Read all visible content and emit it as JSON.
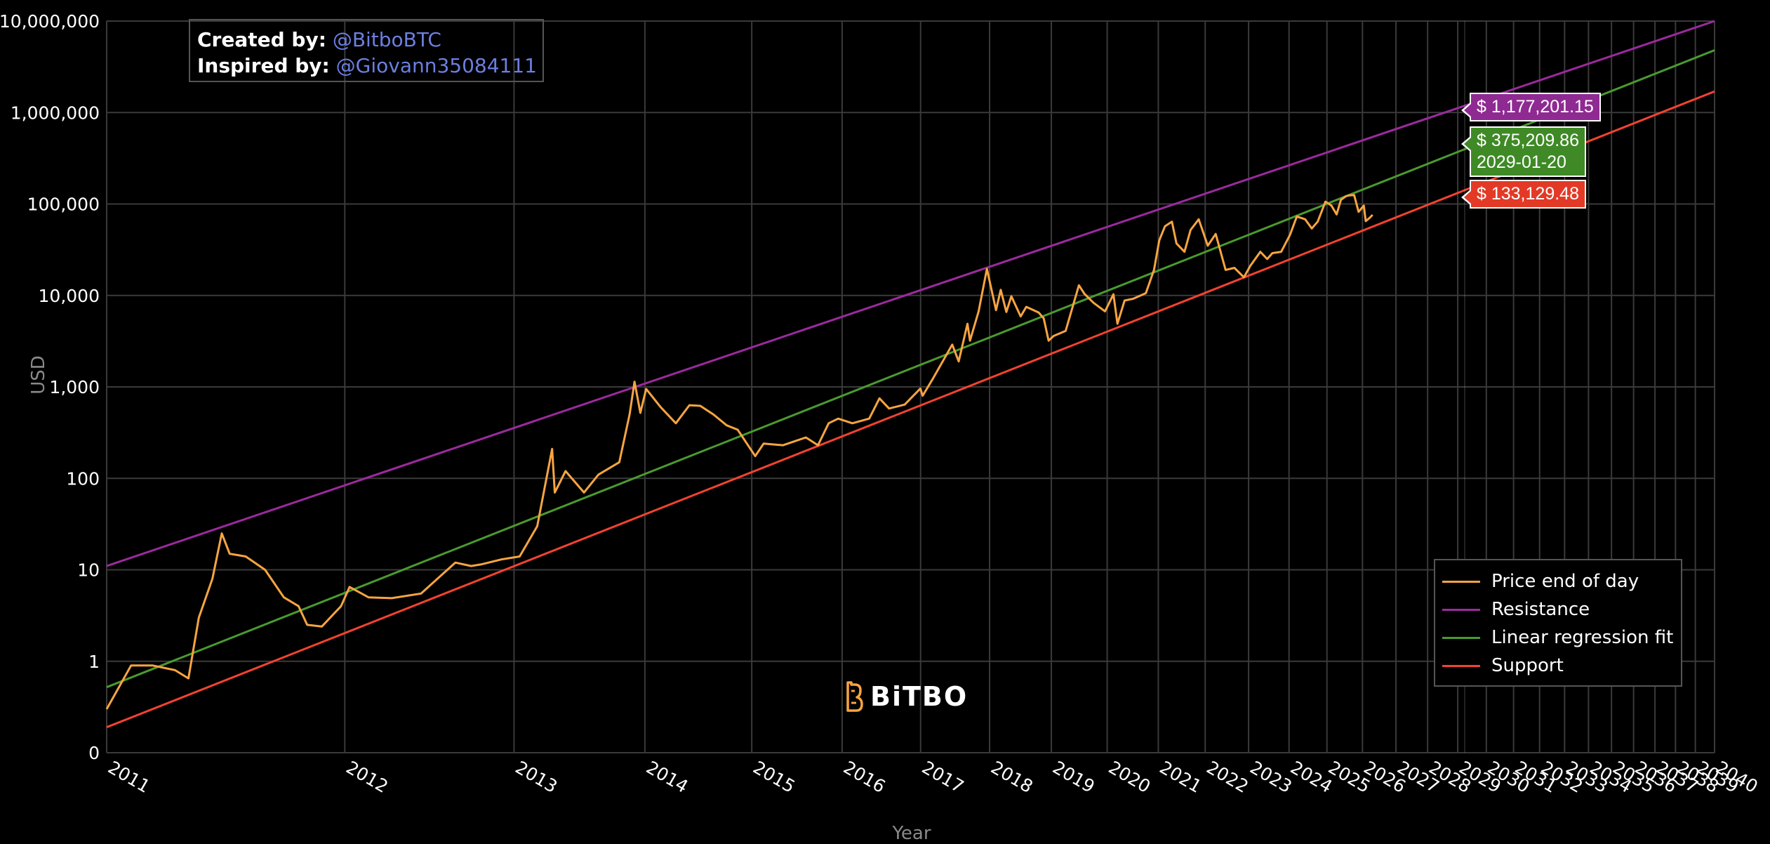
{
  "credits": {
    "created_label": "Created by:",
    "created_handle": "@BitboBTC",
    "inspired_label": "Inspired by:",
    "inspired_handle": "@Giovann35084111"
  },
  "logo": {
    "text": "BiTBO",
    "icon": "bitbo-b-logo-icon"
  },
  "hover": {
    "date": "2029-01-20",
    "resistance_value": "$ 1,177,201.15",
    "regression_value": "$ 375,209.86",
    "support_value": "$ 133,129.48"
  },
  "chart_data": {
    "type": "line",
    "title": "",
    "xlabel": "Year",
    "ylabel": "USD",
    "y_scale": "log",
    "x_scale": "log (days since genesis)",
    "grid": true,
    "legend_position": "bottom-right",
    "y_ticks": [
      {
        "value": 0.1,
        "label": "0"
      },
      {
        "value": 1,
        "label": "1"
      },
      {
        "value": 10,
        "label": "10"
      },
      {
        "value": 100,
        "label": "100"
      },
      {
        "value": 1000,
        "label": "1,000"
      },
      {
        "value": 10000,
        "label": "10,000"
      },
      {
        "value": 100000,
        "label": "100,000"
      },
      {
        "value": 1000000,
        "label": "1,000,000"
      },
      {
        "value": 10000000,
        "label": "10,000,000"
      }
    ],
    "x_ticks": [
      "2011",
      "2012",
      "2013",
      "2014",
      "2015",
      "2016",
      "2017",
      "2018",
      "2019",
      "2020",
      "2021",
      "2022",
      "2023",
      "2024",
      "2025",
      "2026",
      "2027",
      "2028",
      "2029",
      "2030",
      "2031",
      "2032",
      "2033",
      "2034",
      "2035",
      "2036",
      "2037",
      "2038",
      "2039",
      "2040"
    ],
    "series": [
      {
        "name": "Price end of day",
        "color": "#f7a541",
        "points": [
          [
            "2011-01-01",
            0.3
          ],
          [
            "2011-02-01",
            0.9
          ],
          [
            "2011-03-01",
            0.9
          ],
          [
            "2011-04-01",
            0.8
          ],
          [
            "2011-04-20",
            0.65
          ],
          [
            "2011-05-05",
            3
          ],
          [
            "2011-05-25",
            8
          ],
          [
            "2011-06-08",
            25
          ],
          [
            "2011-06-20",
            15
          ],
          [
            "2011-07-15",
            14
          ],
          [
            "2011-08-15",
            10
          ],
          [
            "2011-09-15",
            5
          ],
          [
            "2011-10-10",
            4
          ],
          [
            "2011-10-25",
            2.5
          ],
          [
            "2011-11-20",
            2.4
          ],
          [
            "2011-12-25",
            4
          ],
          [
            "2012-01-10",
            6.5
          ],
          [
            "2012-02-15",
            5
          ],
          [
            "2012-04-01",
            4.9
          ],
          [
            "2012-06-01",
            5.5
          ],
          [
            "2012-08-15",
            12
          ],
          [
            "2012-09-20",
            11
          ],
          [
            "2012-10-15",
            11.5
          ],
          [
            "2012-12-01",
            13
          ],
          [
            "2013-01-15",
            14
          ],
          [
            "2013-03-01",
            30
          ],
          [
            "2013-04-09",
            210
          ],
          [
            "2013-04-16",
            70
          ],
          [
            "2013-05-15",
            120
          ],
          [
            "2013-07-05",
            70
          ],
          [
            "2013-08-15",
            110
          ],
          [
            "2013-10-15",
            150
          ],
          [
            "2013-11-15",
            500
          ],
          [
            "2013-11-30",
            1140
          ],
          [
            "2013-12-18",
            520
          ],
          [
            "2014-01-05",
            950
          ],
          [
            "2014-02-20",
            600
          ],
          [
            "2014-04-10",
            400
          ],
          [
            "2014-05-25",
            630
          ],
          [
            "2014-07-01",
            620
          ],
          [
            "2014-08-15",
            500
          ],
          [
            "2014-10-01",
            380
          ],
          [
            "2014-11-10",
            340
          ],
          [
            "2015-01-14",
            175
          ],
          [
            "2015-02-15",
            240
          ],
          [
            "2015-05-01",
            230
          ],
          [
            "2015-08-01",
            280
          ],
          [
            "2015-09-20",
            230
          ],
          [
            "2015-11-04",
            400
          ],
          [
            "2015-12-15",
            450
          ],
          [
            "2016-02-15",
            400
          ],
          [
            "2016-05-01",
            450
          ],
          [
            "2016-06-17",
            750
          ],
          [
            "2016-08-01",
            580
          ],
          [
            "2016-10-15",
            640
          ],
          [
            "2016-12-31",
            960
          ],
          [
            "2017-01-11",
            800
          ],
          [
            "2017-03-01",
            1200
          ],
          [
            "2017-06-12",
            2900
          ],
          [
            "2017-07-16",
            1900
          ],
          [
            "2017-09-01",
            4900
          ],
          [
            "2017-09-15",
            3200
          ],
          [
            "2017-11-01",
            6700
          ],
          [
            "2017-12-17",
            19500
          ],
          [
            "2018-02-06",
            6900
          ],
          [
            "2018-03-05",
            11500
          ],
          [
            "2018-04-06",
            6600
          ],
          [
            "2018-05-05",
            9800
          ],
          [
            "2018-06-29",
            5900
          ],
          [
            "2018-08-01",
            7500
          ],
          [
            "2018-10-15",
            6500
          ],
          [
            "2018-11-15",
            5600
          ],
          [
            "2018-12-15",
            3200
          ],
          [
            "2019-01-15",
            3600
          ],
          [
            "2019-04-01",
            4100
          ],
          [
            "2019-06-26",
            12900
          ],
          [
            "2019-08-01",
            10400
          ],
          [
            "2019-10-01",
            8300
          ],
          [
            "2019-12-17",
            6700
          ],
          [
            "2020-02-13",
            10300
          ],
          [
            "2020-03-12",
            4900
          ],
          [
            "2020-05-01",
            8800
          ],
          [
            "2020-07-01",
            9200
          ],
          [
            "2020-10-01",
            10600
          ],
          [
            "2020-11-30",
            19000
          ],
          [
            "2021-01-08",
            40000
          ],
          [
            "2021-02-20",
            57000
          ],
          [
            "2021-04-14",
            64000
          ],
          [
            "2021-05-19",
            37000
          ],
          [
            "2021-07-20",
            30000
          ],
          [
            "2021-09-06",
            52000
          ],
          [
            "2021-11-10",
            68000
          ],
          [
            "2022-01-22",
            35000
          ],
          [
            "2022-03-28",
            47000
          ],
          [
            "2022-06-18",
            19000
          ],
          [
            "2022-09-01",
            20000
          ],
          [
            "2022-11-21",
            15800
          ],
          [
            "2023-01-15",
            21000
          ],
          [
            "2023-04-14",
            30000
          ],
          [
            "2023-06-15",
            25000
          ],
          [
            "2023-08-01",
            29000
          ],
          [
            "2023-10-20",
            30000
          ],
          [
            "2024-01-10",
            46000
          ],
          [
            "2024-03-14",
            73000
          ],
          [
            "2024-06-01",
            68000
          ],
          [
            "2024-08-05",
            54000
          ],
          [
            "2024-10-01",
            64000
          ],
          [
            "2024-12-17",
            106000
          ],
          [
            "2025-02-15",
            96000
          ],
          [
            "2025-04-08",
            77000
          ],
          [
            "2025-05-22",
            111000
          ],
          [
            "2025-07-14",
            122000
          ],
          [
            "2025-08-14",
            124000
          ],
          [
            "2025-10-06",
            125000
          ],
          [
            "2025-11-21",
            82000
          ],
          [
            "2026-01-15",
            96000
          ],
          [
            "2026-02-05",
            65000
          ],
          [
            "2026-03-15",
            70000
          ],
          [
            "2026-04-20",
            76000
          ]
        ]
      },
      {
        "name": "Resistance",
        "color": "#9b2a9e",
        "start": [
          "2011-01-01",
          11
        ],
        "end": [
          "2040-01-01",
          10000000
        ]
      },
      {
        "name": "Linear regression fit",
        "color": "#4a9a2e",
        "start": [
          "2011-01-01",
          0.52
        ],
        "end": [
          "2040-01-01",
          4800000
        ]
      },
      {
        "name": "Support",
        "color": "#f2432f",
        "start": [
          "2011-01-01",
          0.19
        ],
        "end": [
          "2040-01-01",
          1700000
        ]
      }
    ]
  }
}
